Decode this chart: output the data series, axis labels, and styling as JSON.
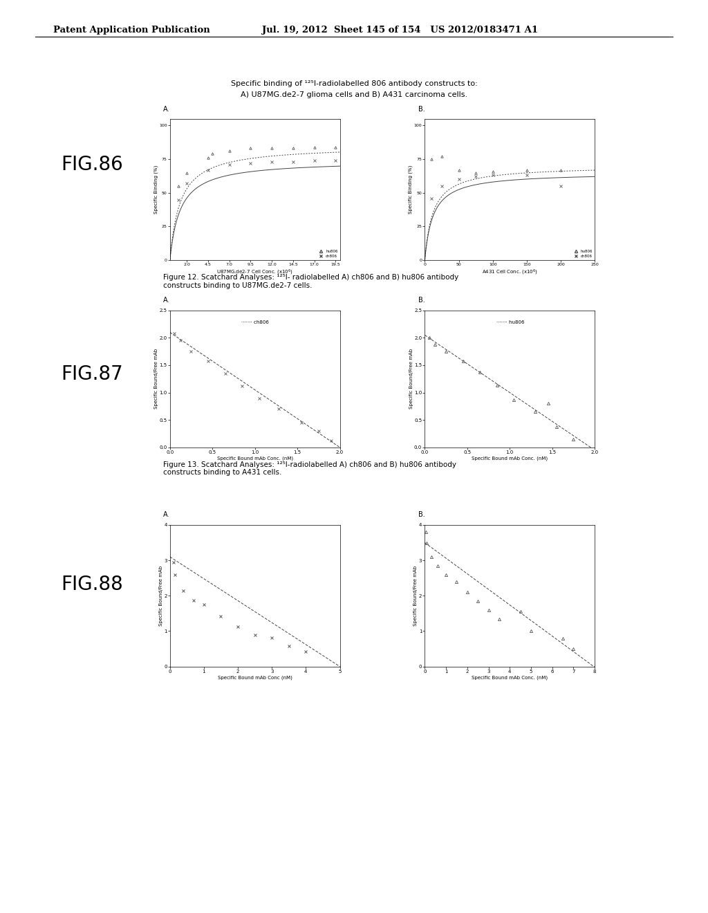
{
  "header_left": "Patent Application Publication",
  "header_right": "Jul. 19, 2012  Sheet 145 of 154   US 2012/0183471 A1",
  "fig86_label": "FIG.86",
  "fig87_label": "FIG.87",
  "fig88_label": "FIG.88",
  "fig86_caption_line1": "Specific binding of ¹²⁵I-radiolabelled 806 antibody constructs to:",
  "fig86_caption_line2": "A) U87MG.de2-7 glioma cells and B) A431 carcinoma cells.",
  "fig12_caption": "Figure 12. Scatchard Analyses: ¹²⁵I- radiolabelled A) ch806 and B) hu806 antibody\nconstructs binding to U87MG.de2-7 cells.",
  "fig13_caption": "Figure 13. Scatchard Analyses: ¹²⁵I-radiolabelled A) ch806 and B) hu806 antibody\nconstructs binding to A431 cells.",
  "background_color": "#ffffff",
  "text_color": "#000000"
}
